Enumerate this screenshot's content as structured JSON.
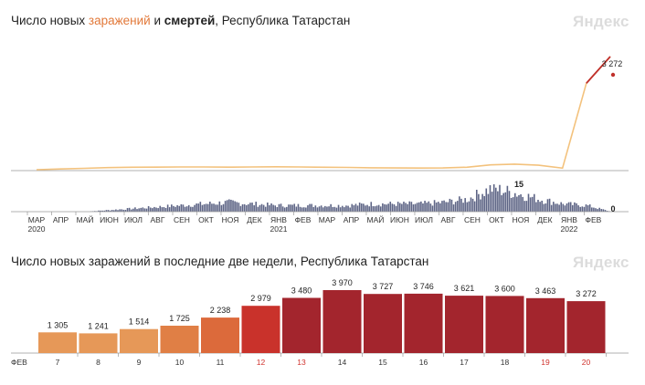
{
  "top": {
    "title_prefix": "Число новых ",
    "title_infections": "заражений",
    "title_and": " и ",
    "title_deaths": "смертей",
    "title_suffix": ", Республика Татарстан",
    "brand": "Яндекс"
  },
  "bottom": {
    "title": "Число новых заражений в последние две недели, Республика Татарстан",
    "brand": "Яндекс"
  },
  "colors": {
    "infections": "#f3c27d",
    "infections_peak": "#c0302b",
    "deaths": "#5d6485",
    "axis": "#999999"
  },
  "chart_data": [
    {
      "type": "line",
      "title": "Число новых заражений и смертей, Республика Татарстан",
      "x_month_labels": [
        "МАР",
        "АПР",
        "МАЙ",
        "ИЮН",
        "ИЮЛ",
        "АВГ",
        "СЕН",
        "ОКТ",
        "НОЯ",
        "ДЕК",
        "ЯНВ",
        "ФЕВ",
        "МАР",
        "АПР",
        "МАЙ",
        "ИЮН",
        "ИЮЛ",
        "АВГ",
        "СЕН",
        "ОКТ",
        "НОЯ",
        "ДЕК",
        "ЯНВ",
        "ФЕВ"
      ],
      "x_year_labels": [
        {
          "label": "2020",
          "index": 0
        },
        {
          "label": "2021",
          "index": 10
        },
        {
          "label": "2022",
          "index": 22
        }
      ],
      "series": [
        {
          "name": "заражений",
          "color": "#f3c27d",
          "values": [
            0,
            20,
            40,
            60,
            70,
            75,
            80,
            78,
            75,
            80,
            85,
            80,
            72,
            65,
            55,
            50,
            48,
            50,
            70,
            140,
            160,
            130,
            45,
            2500,
            3272
          ],
          "last_value_label": "3 272"
        },
        {
          "name": "смертей",
          "color": "#5d6485",
          "values": [
            0,
            0,
            0,
            1,
            2,
            3,
            4,
            5,
            6,
            5,
            4,
            4,
            4,
            4,
            5,
            5,
            5,
            6,
            8,
            15,
            12,
            8,
            5,
            4,
            0
          ],
          "peak_value_label": "15",
          "last_value_label": "0"
        }
      ]
    },
    {
      "type": "bar",
      "title": "Число новых заражений в последние две недели, Республика Татарстан",
      "month_label": "ФЕВ",
      "categories": [
        "7",
        "8",
        "9",
        "10",
        "11",
        "12",
        "13",
        "14",
        "15",
        "16",
        "17",
        "18",
        "19",
        "20"
      ],
      "weekend_categories": [
        "12",
        "13",
        "19",
        "20"
      ],
      "values": [
        1305,
        1241,
        1514,
        1725,
        2238,
        2979,
        3480,
        3970,
        3727,
        3746,
        3621,
        3600,
        3463,
        3272
      ],
      "value_labels": [
        "1 305",
        "1 241",
        "1 514",
        "1 725",
        "2 238",
        "2 979",
        "3 480",
        "3 970",
        "3 727",
        "3 746",
        "3 621",
        "3 600",
        "3 463",
        "3 272"
      ],
      "colors": [
        "#e69858",
        "#e69858",
        "#e69858",
        "#e07f45",
        "#dc6a3b",
        "#c9322b",
        "#a3252d",
        "#a3252d",
        "#a3252d",
        "#a3252d",
        "#a3252d",
        "#a3252d",
        "#a3252d",
        "#a3252d"
      ],
      "ylim": [
        0,
        4000
      ]
    }
  ]
}
